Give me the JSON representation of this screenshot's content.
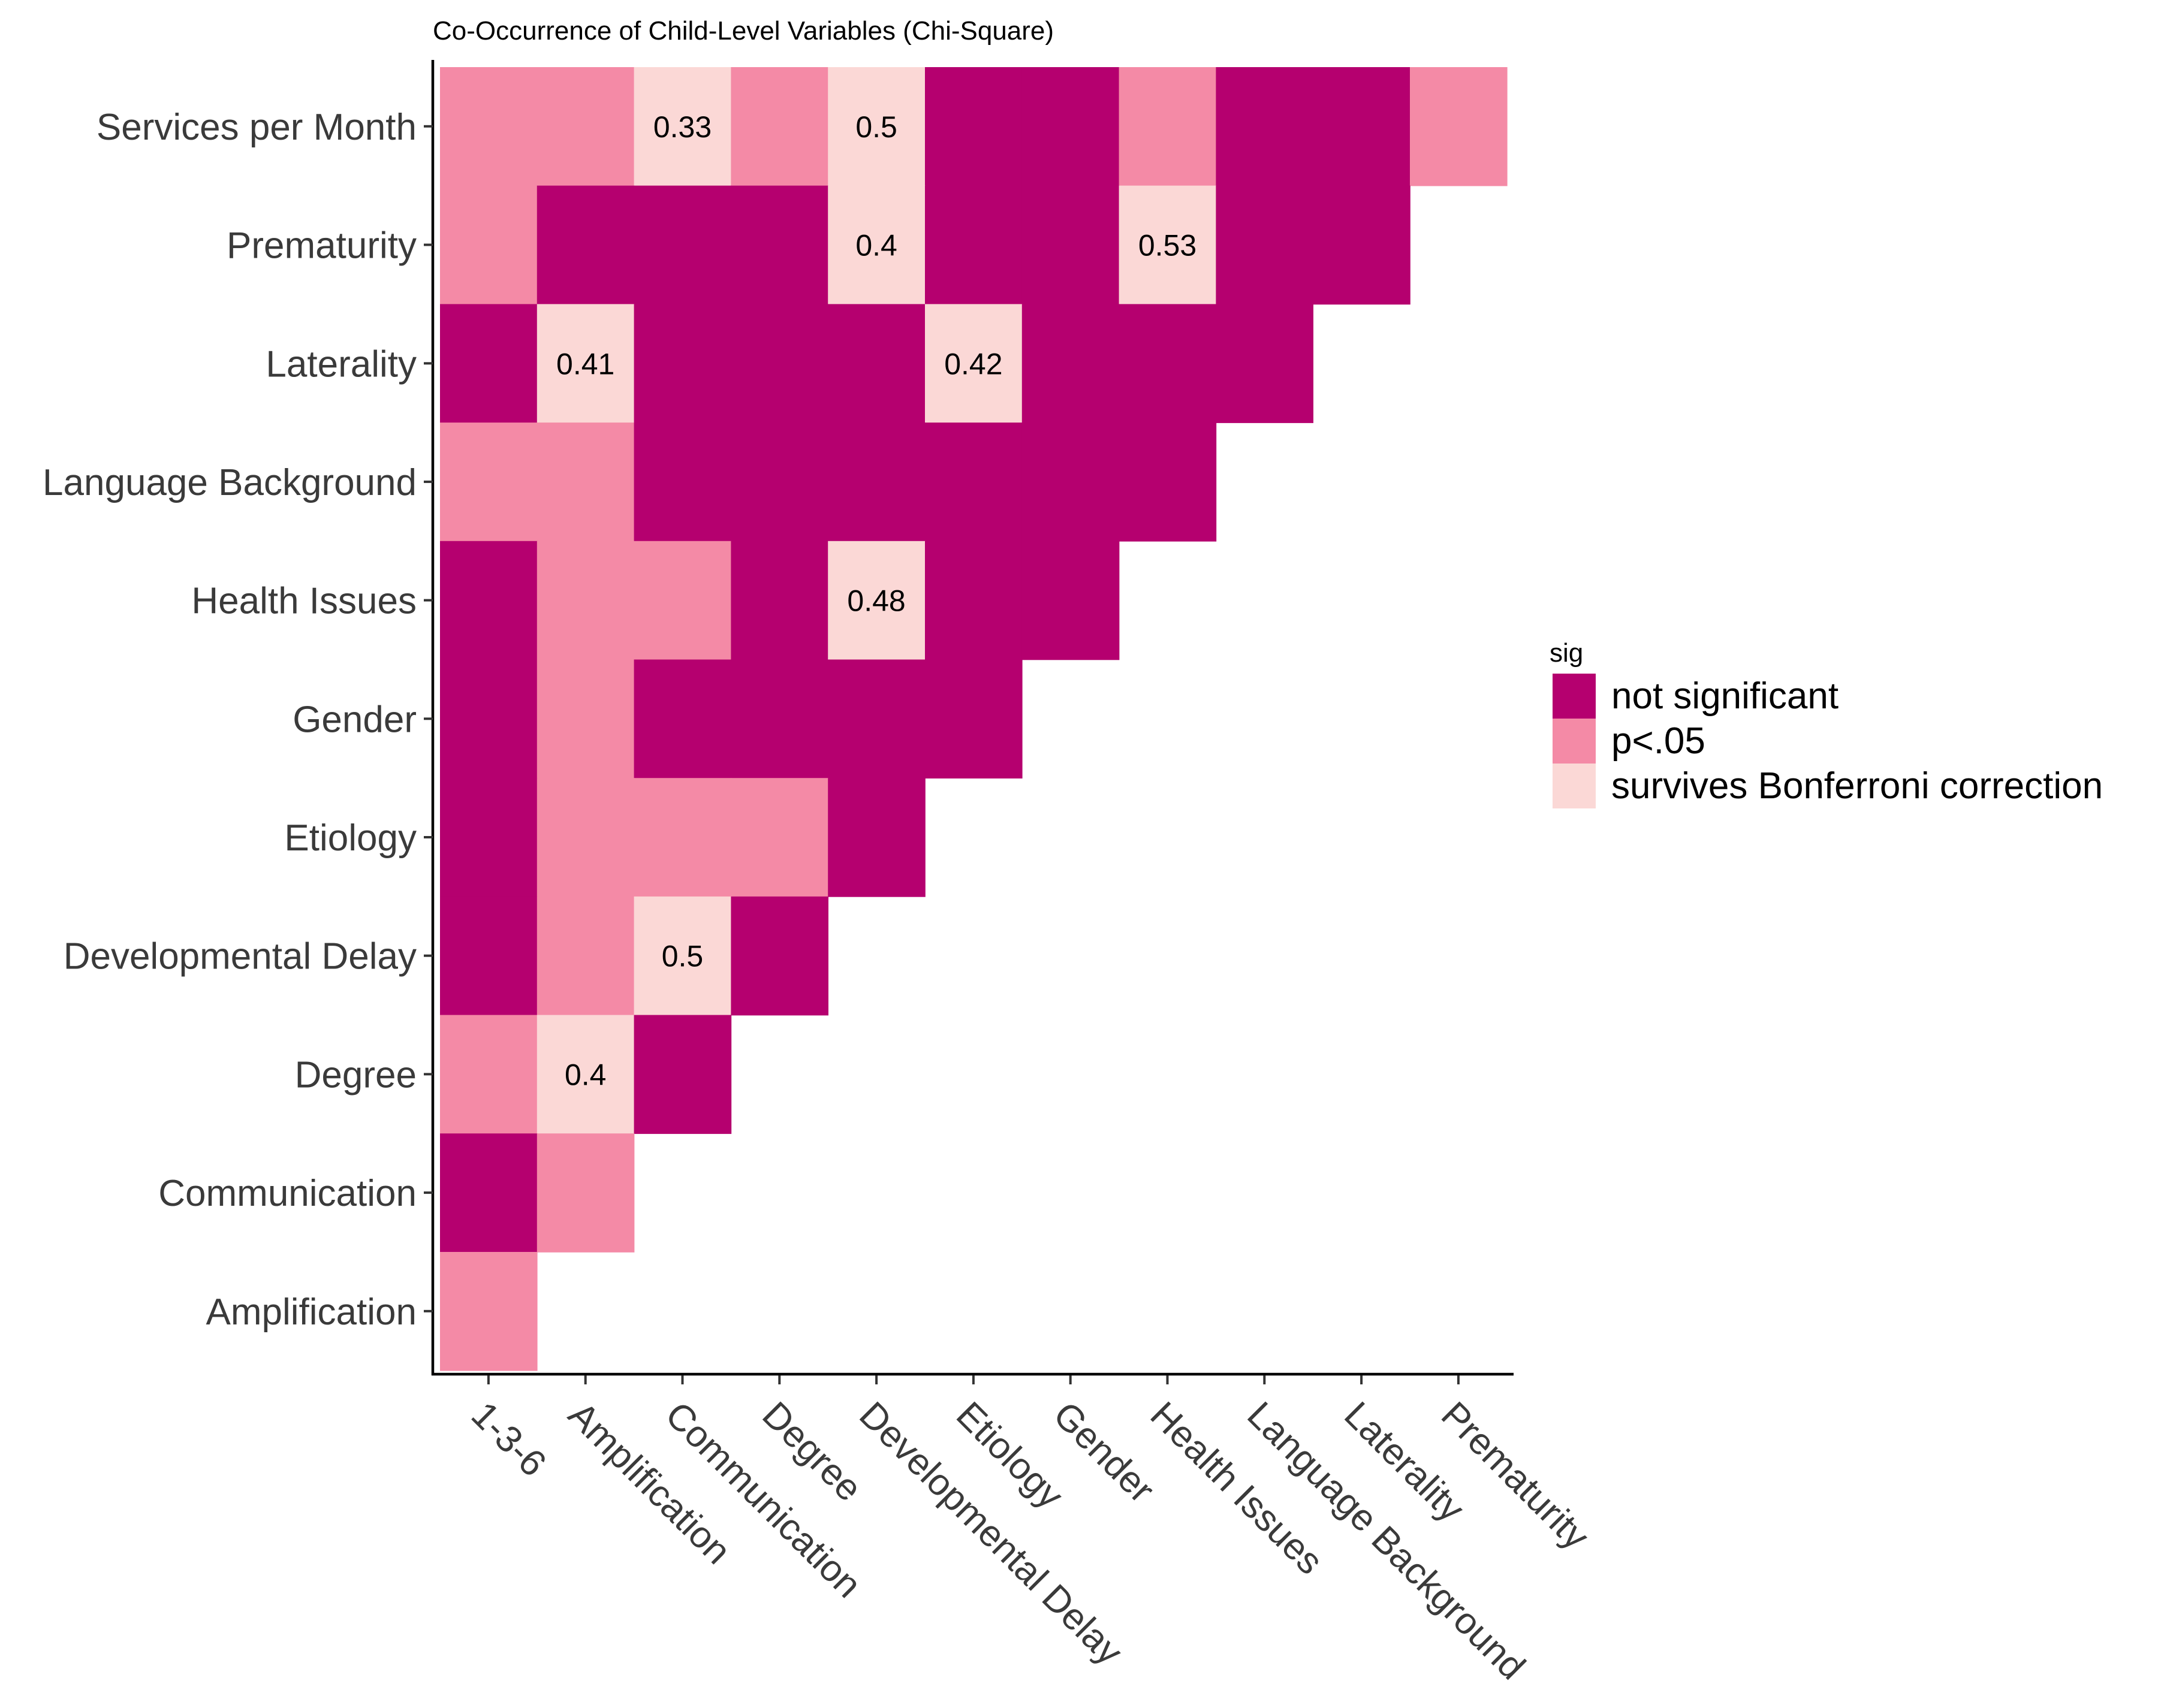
{
  "chart_data": {
    "type": "heatmap",
    "title": "Co-Occurrence of Child-Level Variables (Chi-Square)",
    "x_categories": [
      "1-3-6",
      "Amplification",
      "Communication",
      "Degree",
      "Developmental Delay",
      "Etiology",
      "Gender",
      "Health Issues",
      "Language Background",
      "Laterality",
      "Prematurity"
    ],
    "y_categories": [
      "Amplification",
      "Communication",
      "Degree",
      "Developmental Delay",
      "Etiology",
      "Gender",
      "Health Issues",
      "Language Background",
      "Laterality",
      "Prematurity",
      "Services per Month"
    ],
    "legend": {
      "title": "sig",
      "position": "right",
      "levels": [
        {
          "label": "not significant",
          "color": "#b5006f"
        },
        {
          "label": "p<.05",
          "color": "#f48aa6"
        },
        {
          "label": "survives Bonferroni correction",
          "color": "#fbd8d6"
        }
      ]
    },
    "cells": [
      {
        "y": "Services per Month",
        "x": "1-3-6",
        "sig": "p<.05"
      },
      {
        "y": "Services per Month",
        "x": "Amplification",
        "sig": "p<.05"
      },
      {
        "y": "Services per Month",
        "x": "Communication",
        "sig": "survives Bonferroni correction",
        "label": "0.33"
      },
      {
        "y": "Services per Month",
        "x": "Degree",
        "sig": "p<.05"
      },
      {
        "y": "Services per Month",
        "x": "Developmental Delay",
        "sig": "survives Bonferroni correction",
        "label": "0.5"
      },
      {
        "y": "Services per Month",
        "x": "Etiology",
        "sig": "not significant"
      },
      {
        "y": "Services per Month",
        "x": "Gender",
        "sig": "not significant"
      },
      {
        "y": "Services per Month",
        "x": "Health Issues",
        "sig": "p<.05"
      },
      {
        "y": "Services per Month",
        "x": "Language Background",
        "sig": "not significant"
      },
      {
        "y": "Services per Month",
        "x": "Laterality",
        "sig": "not significant"
      },
      {
        "y": "Services per Month",
        "x": "Prematurity",
        "sig": "p<.05"
      },
      {
        "y": "Prematurity",
        "x": "1-3-6",
        "sig": "p<.05"
      },
      {
        "y": "Prematurity",
        "x": "Amplification",
        "sig": "not significant"
      },
      {
        "y": "Prematurity",
        "x": "Communication",
        "sig": "not significant"
      },
      {
        "y": "Prematurity",
        "x": "Degree",
        "sig": "not significant"
      },
      {
        "y": "Prematurity",
        "x": "Developmental Delay",
        "sig": "survives Bonferroni correction",
        "label": "0.4"
      },
      {
        "y": "Prematurity",
        "x": "Etiology",
        "sig": "not significant"
      },
      {
        "y": "Prematurity",
        "x": "Gender",
        "sig": "not significant"
      },
      {
        "y": "Prematurity",
        "x": "Health Issues",
        "sig": "survives Bonferroni correction",
        "label": "0.53"
      },
      {
        "y": "Prematurity",
        "x": "Language Background",
        "sig": "not significant"
      },
      {
        "y": "Prematurity",
        "x": "Laterality",
        "sig": "not significant"
      },
      {
        "y": "Laterality",
        "x": "1-3-6",
        "sig": "not significant"
      },
      {
        "y": "Laterality",
        "x": "Amplification",
        "sig": "survives Bonferroni correction",
        "label": "0.41"
      },
      {
        "y": "Laterality",
        "x": "Communication",
        "sig": "not significant"
      },
      {
        "y": "Laterality",
        "x": "Degree",
        "sig": "not significant"
      },
      {
        "y": "Laterality",
        "x": "Developmental Delay",
        "sig": "not significant"
      },
      {
        "y": "Laterality",
        "x": "Etiology",
        "sig": "survives Bonferroni correction",
        "label": "0.42"
      },
      {
        "y": "Laterality",
        "x": "Gender",
        "sig": "not significant"
      },
      {
        "y": "Laterality",
        "x": "Health Issues",
        "sig": "not significant"
      },
      {
        "y": "Laterality",
        "x": "Language Background",
        "sig": "not significant"
      },
      {
        "y": "Language Background",
        "x": "1-3-6",
        "sig": "p<.05"
      },
      {
        "y": "Language Background",
        "x": "Amplification",
        "sig": "p<.05"
      },
      {
        "y": "Language Background",
        "x": "Communication",
        "sig": "not significant"
      },
      {
        "y": "Language Background",
        "x": "Degree",
        "sig": "not significant"
      },
      {
        "y": "Language Background",
        "x": "Developmental Delay",
        "sig": "not significant"
      },
      {
        "y": "Language Background",
        "x": "Etiology",
        "sig": "not significant"
      },
      {
        "y": "Language Background",
        "x": "Gender",
        "sig": "not significant"
      },
      {
        "y": "Language Background",
        "x": "Health Issues",
        "sig": "not significant"
      },
      {
        "y": "Health Issues",
        "x": "1-3-6",
        "sig": "not significant"
      },
      {
        "y": "Health Issues",
        "x": "Amplification",
        "sig": "p<.05"
      },
      {
        "y": "Health Issues",
        "x": "Communication",
        "sig": "p<.05"
      },
      {
        "y": "Health Issues",
        "x": "Degree",
        "sig": "not significant"
      },
      {
        "y": "Health Issues",
        "x": "Developmental Delay",
        "sig": "survives Bonferroni correction",
        "label": "0.48"
      },
      {
        "y": "Health Issues",
        "x": "Etiology",
        "sig": "not significant"
      },
      {
        "y": "Health Issues",
        "x": "Gender",
        "sig": "not significant"
      },
      {
        "y": "Gender",
        "x": "1-3-6",
        "sig": "not significant"
      },
      {
        "y": "Gender",
        "x": "Amplification",
        "sig": "p<.05"
      },
      {
        "y": "Gender",
        "x": "Communication",
        "sig": "not significant"
      },
      {
        "y": "Gender",
        "x": "Degree",
        "sig": "not significant"
      },
      {
        "y": "Gender",
        "x": "Developmental Delay",
        "sig": "not significant"
      },
      {
        "y": "Gender",
        "x": "Etiology",
        "sig": "not significant"
      },
      {
        "y": "Etiology",
        "x": "1-3-6",
        "sig": "not significant"
      },
      {
        "y": "Etiology",
        "x": "Amplification",
        "sig": "p<.05"
      },
      {
        "y": "Etiology",
        "x": "Communication",
        "sig": "p<.05"
      },
      {
        "y": "Etiology",
        "x": "Degree",
        "sig": "p<.05"
      },
      {
        "y": "Etiology",
        "x": "Developmental Delay",
        "sig": "not significant"
      },
      {
        "y": "Developmental Delay",
        "x": "1-3-6",
        "sig": "not significant"
      },
      {
        "y": "Developmental Delay",
        "x": "Amplification",
        "sig": "p<.05"
      },
      {
        "y": "Developmental Delay",
        "x": "Communication",
        "sig": "survives Bonferroni correction",
        "label": "0.5"
      },
      {
        "y": "Developmental Delay",
        "x": "Degree",
        "sig": "not significant"
      },
      {
        "y": "Degree",
        "x": "1-3-6",
        "sig": "p<.05"
      },
      {
        "y": "Degree",
        "x": "Amplification",
        "sig": "survives Bonferroni correction",
        "label": "0.4"
      },
      {
        "y": "Degree",
        "x": "Communication",
        "sig": "not significant"
      },
      {
        "y": "Communication",
        "x": "1-3-6",
        "sig": "not significant"
      },
      {
        "y": "Communication",
        "x": "Amplification",
        "sig": "p<.05"
      },
      {
        "y": "Amplification",
        "x": "1-3-6",
        "sig": "p<.05"
      }
    ]
  }
}
